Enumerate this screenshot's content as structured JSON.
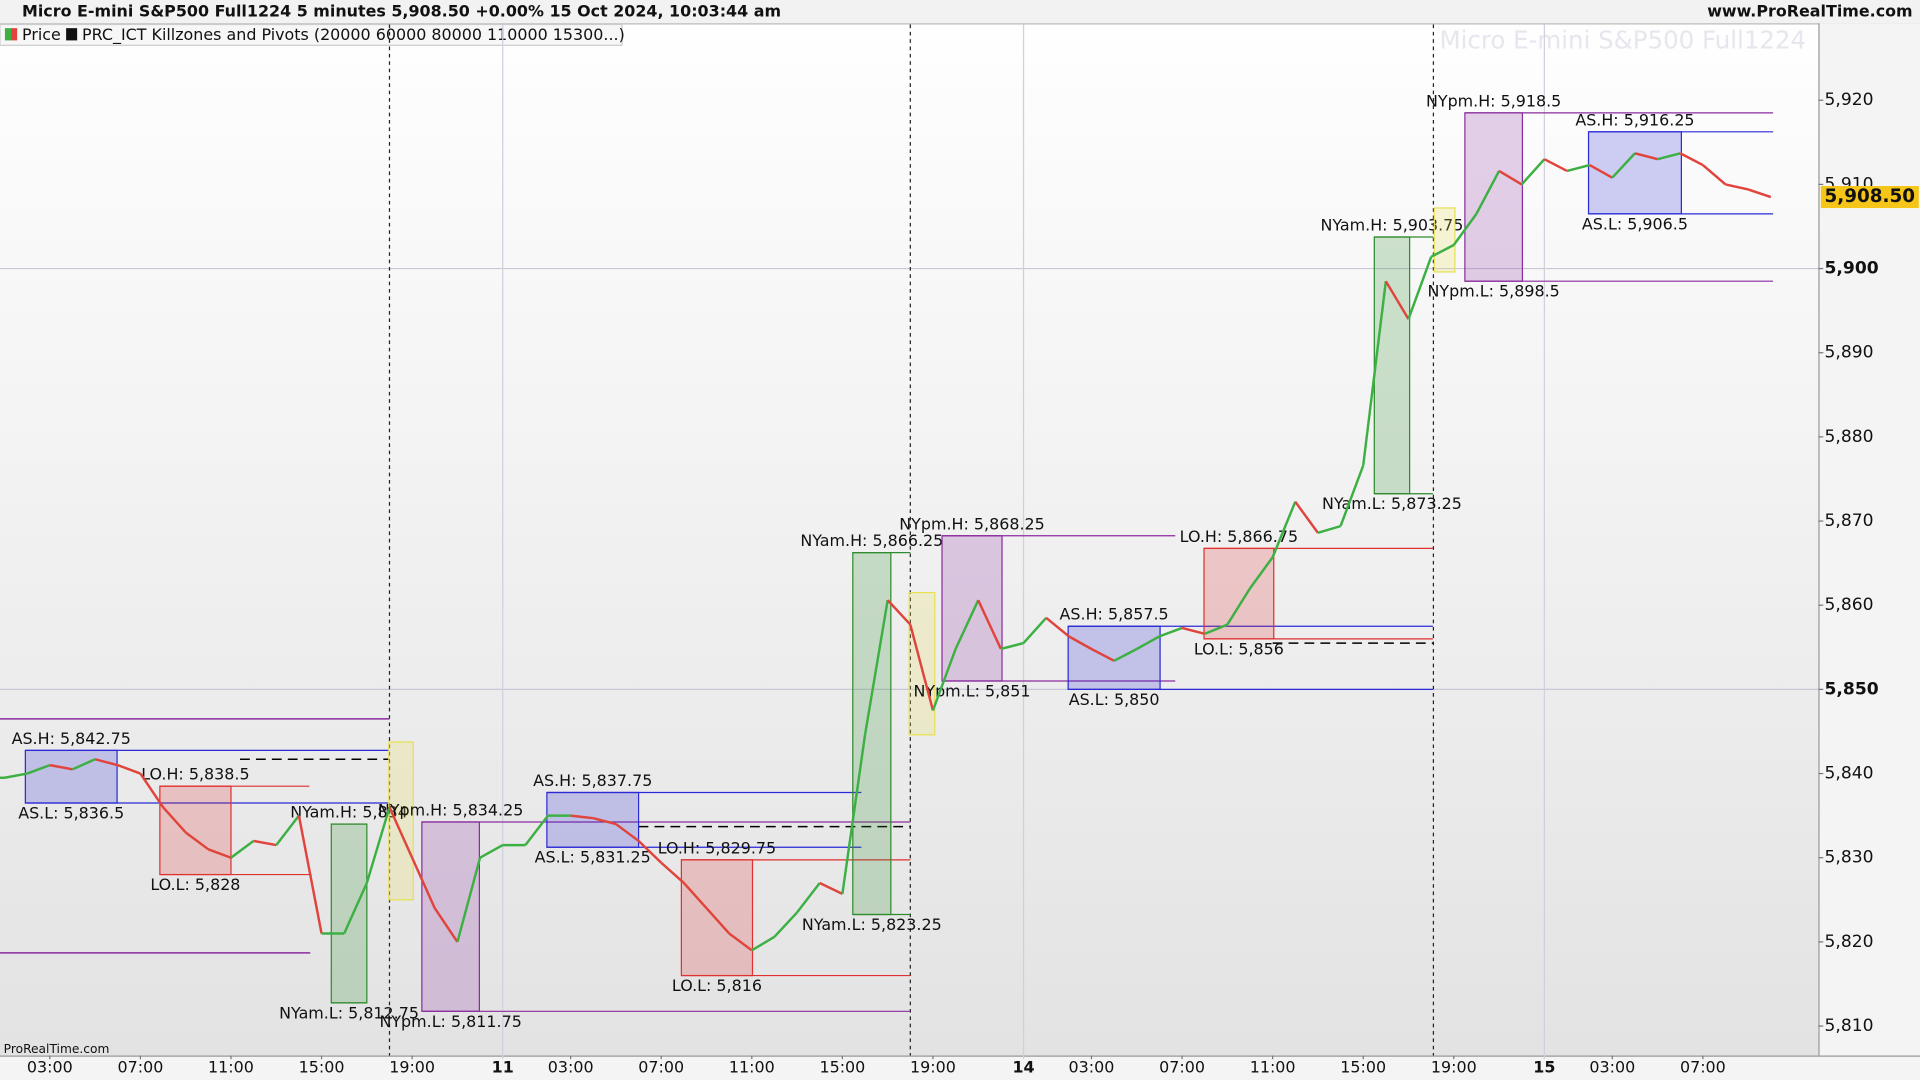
{
  "chart_data": {
    "type": "line",
    "title": "Micro E-mini S&P500 Full1224 5 minutes 5,908.50 +0.00% 15 Oct 2024, 10:03:44 am",
    "source": "www.ProRealTime.com",
    "watermark": "Micro E-mini S&P500 Full1224",
    "footer": "ProRealTime.com",
    "indicator": "PRC_ICT Killzones and Pivots (20000 60000 80000 110000 15300...)",
    "series": [
      {
        "name": "Price",
        "color": "#3cb043",
        "color_down": "#e0443c",
        "x": [
          1,
          2,
          3,
          4,
          5,
          6,
          7,
          8,
          9,
          10,
          11,
          12,
          13,
          14,
          15,
          16,
          17,
          18,
          19,
          20,
          21,
          22,
          23,
          24,
          25,
          26,
          27,
          28,
          29,
          30,
          31,
          32,
          33,
          34,
          35,
          36,
          37,
          38,
          39,
          40,
          41,
          42,
          43,
          44,
          45,
          46,
          47,
          48,
          49,
          50,
          51,
          52,
          53,
          54,
          55,
          56,
          57,
          58,
          59,
          60,
          61,
          62,
          63,
          64,
          65,
          66,
          67,
          68,
          69,
          70,
          71,
          72,
          73,
          74,
          75,
          76,
          77,
          78,
          79
        ],
        "values": [
          5839.5,
          5840,
          5841,
          5840.5,
          5841.7,
          5841,
          5840,
          5836,
          5833,
          5831,
          5830,
          5832,
          5831.5,
          5835,
          5821,
          5821,
          5827,
          5836,
          5830,
          5824,
          5820,
          5830,
          5831.5,
          5831.5,
          5835,
          5835,
          5834.7,
          5834,
          5832,
          5829.4,
          5827,
          5824,
          5821,
          5819,
          5820.6,
          5823.5,
          5827,
          5825.7,
          5844.6,
          5860.6,
          5857.7,
          5847.5,
          5854.8,
          5860.6,
          5854.8,
          5855.5,
          5858.5,
          5856.3,
          5854.8,
          5853.4,
          5854.8,
          5856.3,
          5857.3,
          5856.6,
          5857.7,
          5862,
          5865.7,
          5872.3,
          5868.6,
          5869.4,
          5876.6,
          5898.5,
          5894,
          5901.4,
          5902.8,
          5906.5,
          5911.6,
          5910,
          5913,
          5911.6,
          5912.3,
          5910.8,
          5913.7,
          5913,
          5913.7,
          5912.3,
          5910,
          5909.4,
          5908.5
        ]
      }
    ],
    "last_price": {
      "value": 5908.5,
      "label": "5,908.50"
    },
    "xlim": [
      0.8,
      81.1
    ],
    "ylim": [
      5806.5,
      5929
    ],
    "xticks": [
      {
        "value": 3,
        "label": "03:00"
      },
      {
        "value": 7,
        "label": "07:00"
      },
      {
        "value": 11,
        "label": "11:00"
      },
      {
        "value": 15,
        "label": "15:00"
      },
      {
        "value": 19,
        "label": "19:00"
      },
      {
        "value": 23,
        "label": "11",
        "major": true
      },
      {
        "value": 26,
        "label": "03:00"
      },
      {
        "value": 30,
        "label": "07:00"
      },
      {
        "value": 34,
        "label": "11:00"
      },
      {
        "value": 38,
        "label": "15:00"
      },
      {
        "value": 42,
        "label": "19:00"
      },
      {
        "value": 46,
        "label": "14",
        "major": true
      },
      {
        "value": 49,
        "label": "03:00"
      },
      {
        "value": 53,
        "label": "07:00"
      },
      {
        "value": 57,
        "label": "11:00"
      },
      {
        "value": 61,
        "label": "15:00"
      },
      {
        "value": 65,
        "label": "19:00"
      },
      {
        "value": 69,
        "label": "15",
        "major": true
      },
      {
        "value": 72,
        "label": "03:00"
      },
      {
        "value": 76,
        "label": "07:00"
      }
    ],
    "yticks": [
      {
        "value": 5810,
        "label": "5,810"
      },
      {
        "value": 5820,
        "label": "5,820"
      },
      {
        "value": 5830,
        "label": "5,830"
      },
      {
        "value": 5840,
        "label": "5,840"
      },
      {
        "value": 5850,
        "label": "5,850",
        "major": true
      },
      {
        "value": 5860,
        "label": "5,860"
      },
      {
        "value": 5870,
        "label": "5,870"
      },
      {
        "value": 5880,
        "label": "5,880"
      },
      {
        "value": 5890,
        "label": "5,890"
      },
      {
        "value": 5900,
        "label": "5,900",
        "major": true
      },
      {
        "value": 5910,
        "label": "5,910"
      },
      {
        "value": 5920,
        "label": "5,920"
      }
    ],
    "session_breaks": [
      18,
      41,
      64.1
    ],
    "levels": [
      {
        "value": 5846.5,
        "x": [
          0.8,
          18
        ],
        "color": "#8a2d9e"
      },
      {
        "value": 5818.7,
        "x": [
          0.8,
          14.5
        ],
        "color": "#8a2d9e"
      },
      {
        "value": 5841.7,
        "x": [
          11.4,
          18
        ],
        "color": "#000000",
        "dash": true
      },
      {
        "value": 5833.7,
        "x": [
          29,
          41
        ],
        "color": "#000000",
        "dash": true
      },
      {
        "value": 5855.5,
        "x": [
          57,
          64.1
        ],
        "color": "#000000",
        "dash": true
      }
    ],
    "zones": [
      {
        "color": "#2b2bd6",
        "x": [
          1.92,
          5.97
        ],
        "line_to": 18,
        "high": {
          "value": 5842.75,
          "label": "AS.H: 5,842.75"
        },
        "low": {
          "value": 5836.5,
          "label": "AS.L: 5,836.5"
        }
      },
      {
        "color": "#e03030",
        "x": [
          7.86,
          11.0
        ],
        "line_to": 14.46,
        "high": {
          "value": 5838.5,
          "label": "LO.H: 5,838.5"
        },
        "low": {
          "value": 5828,
          "label": "LO.L: 5,828"
        }
      },
      {
        "color": "#2e8b2e",
        "x": [
          15.43,
          17.0
        ],
        "line_to": 17.0,
        "high": {
          "value": 5834,
          "label": "NYam.H: 5,834"
        },
        "low": {
          "value": 5812.75,
          "label": "NYam.L: 5,812.75"
        }
      },
      {
        "color": "#e8e050",
        "x": [
          17.97,
          19.05
        ],
        "high": 5843.75,
        "low": 5825
      },
      {
        "color": "#8a2d9e",
        "x": [
          19.43,
          21.97
        ],
        "line_to": 41.0,
        "high": {
          "value": 5834.25,
          "label": "NYpm.H: 5,834.25"
        },
        "low": {
          "value": 5811.75,
          "label": "NYpm.L: 5,811.75"
        }
      },
      {
        "color": "#2b2bd6",
        "x": [
          24.95,
          29.0
        ],
        "line_to": 38.84,
        "high": {
          "value": 5837.75,
          "label": "AS.H: 5,837.75"
        },
        "low": {
          "value": 5831.25,
          "label": "AS.L: 5,831.25"
        }
      },
      {
        "color": "#e03030",
        "x": [
          30.89,
          34.03
        ],
        "line_to": 41.0,
        "high": {
          "value": 5829.75,
          "label": "LO.H: 5,829.75"
        },
        "low": {
          "value": 5816,
          "label": "LO.L: 5,816"
        }
      },
      {
        "color": "#2e8b2e",
        "x": [
          38.46,
          40.14
        ],
        "line_to": 41.0,
        "high": {
          "value": 5866.25,
          "label": "NYam.H: 5,866.25"
        },
        "low": {
          "value": 5823.25,
          "label": "NYam.L: 5,823.25"
        }
      },
      {
        "color": "#e8e050",
        "x": [
          40.95,
          42.08
        ],
        "high": 5861.5,
        "low": 5844.6
      },
      {
        "color": "#8a2d9e",
        "x": [
          42.4,
          45.05
        ],
        "line_to": 52.7,
        "high": {
          "value": 5868.25,
          "label": "NYpm.H: 5,868.25"
        },
        "low": {
          "value": 5851,
          "label": "NYpm.L: 5,851"
        }
      },
      {
        "color": "#2b2bd6",
        "x": [
          47.97,
          52.03
        ],
        "line_to": 64.08,
        "high": {
          "value": 5857.5,
          "label": "AS.H: 5,857.5"
        },
        "low": {
          "value": 5850,
          "label": "AS.L: 5,850"
        }
      },
      {
        "color": "#e03030",
        "x": [
          53.97,
          57.05
        ],
        "line_to": 64.08,
        "high": {
          "value": 5866.75,
          "label": "LO.H: 5,866.75"
        },
        "low": {
          "value": 5856,
          "label": "LO.L: 5,856"
        }
      },
      {
        "color": "#2e8b2e",
        "x": [
          61.49,
          63.05
        ],
        "line_to": 64.08,
        "high": {
          "value": 5903.75,
          "label": "NYam.H: 5,903.75"
        },
        "low": {
          "value": 5873.25,
          "label": "NYam.L: 5,873.25"
        }
      },
      {
        "color": "#e8e050",
        "x": [
          64.14,
          65.05
        ],
        "high": 5907.2,
        "low": 5899.6
      },
      {
        "color": "#8a2d9e",
        "x": [
          65.49,
          68.03
        ],
        "line_to": 79.1,
        "high": {
          "value": 5918.5,
          "label": "NYpm.H: 5,918.5"
        },
        "low": {
          "value": 5898.5,
          "label": "NYpm.L: 5,898.5"
        }
      },
      {
        "color": "#2b2bd6",
        "x": [
          70.95,
          75.05
        ],
        "line_to": 79.1,
        "high": {
          "value": 5916.25,
          "label": "AS.H: 5,916.25"
        },
        "low": {
          "value": 5906.5,
          "label": "AS.L: 5,906.5"
        }
      }
    ]
  }
}
